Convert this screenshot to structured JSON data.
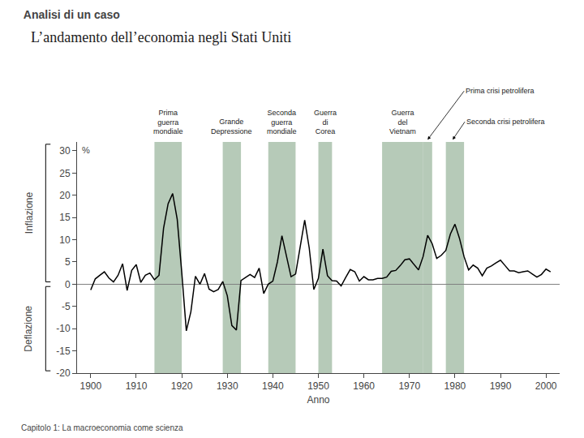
{
  "chart_data": {
    "type": "line",
    "title": "Analisi di un caso",
    "subtitle": "L’andamento dell’economia negli Stati Uniti",
    "xlabel": "Anno",
    "ylabel_top": "Inflazione",
    "ylabel_bottom": "Deflazione",
    "yunit": "%",
    "caption": "Capitolo 1: La macroeconomia come scienza",
    "x": [
      1900,
      1901,
      1902,
      1903,
      1904,
      1905,
      1906,
      1907,
      1908,
      1909,
      1910,
      1911,
      1912,
      1913,
      1914,
      1915,
      1916,
      1917,
      1918,
      1919,
      1920,
      1921,
      1922,
      1923,
      1924,
      1925,
      1926,
      1927,
      1928,
      1929,
      1930,
      1931,
      1932,
      1933,
      1934,
      1935,
      1936,
      1937,
      1938,
      1939,
      1940,
      1941,
      1942,
      1943,
      1944,
      1945,
      1946,
      1947,
      1948,
      1949,
      1950,
      1951,
      1952,
      1953,
      1954,
      1955,
      1956,
      1957,
      1958,
      1959,
      1960,
      1961,
      1962,
      1963,
      1964,
      1965,
      1966,
      1967,
      1968,
      1969,
      1970,
      1971,
      1972,
      1973,
      1974,
      1975,
      1976,
      1977,
      1978,
      1979,
      1980,
      1981,
      1982,
      1983,
      1984,
      1985,
      1986,
      1987,
      1988,
      1989,
      1990,
      1991,
      1992,
      1993,
      1994,
      1995,
      1996,
      1997,
      1998,
      1999,
      2000,
      2001
    ],
    "series": [
      {
        "color": "#000000",
        "values": [
          -1.3,
          1.2,
          2.0,
          2.8,
          1.4,
          0.5,
          2.0,
          4.6,
          -1.4,
          3.1,
          4.4,
          0.4,
          2.0,
          2.5,
          1.0,
          2.0,
          12.6,
          18.1,
          20.4,
          14.6,
          2.6,
          -10.5,
          -6.2,
          1.8,
          0.0,
          2.4,
          -1.1,
          -1.7,
          -1.2,
          0.6,
          -2.6,
          -9.3,
          -10.3,
          0.8,
          1.5,
          2.2,
          1.5,
          3.6,
          -2.1,
          0.0,
          0.7,
          5.0,
          10.9,
          6.1,
          1.7,
          2.3,
          8.3,
          14.4,
          8.1,
          -1.2,
          1.3,
          7.9,
          1.9,
          0.8,
          0.7,
          -0.4,
          1.5,
          3.3,
          2.8,
          0.7,
          1.7,
          1.0,
          1.0,
          1.3,
          1.3,
          1.6,
          2.9,
          3.1,
          4.2,
          5.5,
          5.7,
          4.4,
          3.2,
          6.2,
          11.0,
          9.1,
          5.8,
          6.5,
          7.6,
          11.3,
          13.5,
          10.3,
          6.2,
          3.2,
          4.3,
          3.6,
          1.9,
          3.6,
          4.1,
          4.8,
          5.4,
          4.2,
          3.0,
          3.0,
          2.6,
          2.8,
          3.0,
          2.3,
          1.6,
          2.2,
          3.4,
          2.8
        ]
      }
    ],
    "xlim": [
      1897,
      2003
    ],
    "ylim": [
      -20,
      32
    ],
    "xticks": [
      1900,
      1910,
      1920,
      1930,
      1940,
      1950,
      1960,
      1970,
      1980,
      1990,
      2000
    ],
    "yticks": [
      -20,
      -15,
      -10,
      -5,
      0,
      5,
      10,
      15,
      20,
      25,
      30
    ],
    "grid": false,
    "shaded_regions": {
      "color": "#7a9e7e",
      "ranges": [
        [
          1914,
          1920
        ],
        [
          1929,
          1933
        ],
        [
          1939,
          1945
        ],
        [
          1950,
          1953
        ],
        [
          1964,
          1973
        ],
        [
          1973,
          1975
        ],
        [
          1978,
          1982
        ]
      ]
    },
    "annotations": [
      {
        "text": "Prima\nguerra\nmondiale",
        "x": 1917
      },
      {
        "text": "Grande\nDepressione",
        "x": 1931
      },
      {
        "text": "Seconda\nguerra\nmondiale",
        "x": 1942
      },
      {
        "text": "Guerra\ndi\nCorea",
        "x": 1951.5
      },
      {
        "text": "Guerra\ndel\nVietnam",
        "x": 1968.5
      }
    ],
    "arrow_annotations": [
      {
        "text": "Prima crisi petrolifera",
        "x": 1974
      },
      {
        "text": "Seconda crisi petrolifera",
        "x": 1979.5
      }
    ]
  }
}
